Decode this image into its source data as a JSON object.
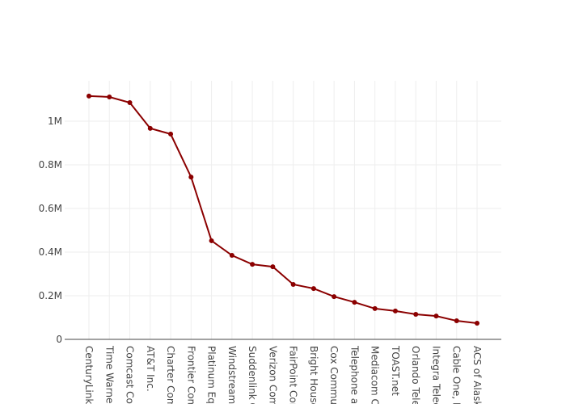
{
  "chart_data": {
    "type": "line",
    "categories": [
      "CenturyLink,",
      "Time Warner",
      "Comcast Cor",
      "AT&T Inc.",
      "Charter Com",
      "Frontier Com",
      "Platinum Equ",
      "Windstream",
      "Suddenlink C",
      "Verizon Com",
      "FairPoint Cor",
      "Bright House",
      "Cox Commun",
      "Telephone an",
      "Mediacom C",
      "TOAST.net",
      "Orlando Tele",
      "Integra Telec",
      "Cable One, In",
      "ACS of Alask"
    ],
    "series": [
      {
        "color": "#8b0000",
        "values": [
          1115000,
          1111000,
          1085000,
          967000,
          941000,
          744000,
          452000,
          385000,
          344000,
          333000,
          252000,
          233000,
          196000,
          170000,
          141000,
          130000,
          115000,
          107000,
          85000,
          74000
        ]
      }
    ],
    "ylim": [
      0,
      1185000
    ],
    "yticks": [
      0,
      {
        "value": 200000,
        "label": "0.2M"
      },
      {
        "value": 400000,
        "label": "0.4M"
      },
      {
        "value": 600000,
        "label": "0.6M"
      },
      {
        "value": 800000,
        "label": "0.8M"
      },
      {
        "value": 1000000,
        "label": "1M"
      }
    ],
    "grid": true
  }
}
